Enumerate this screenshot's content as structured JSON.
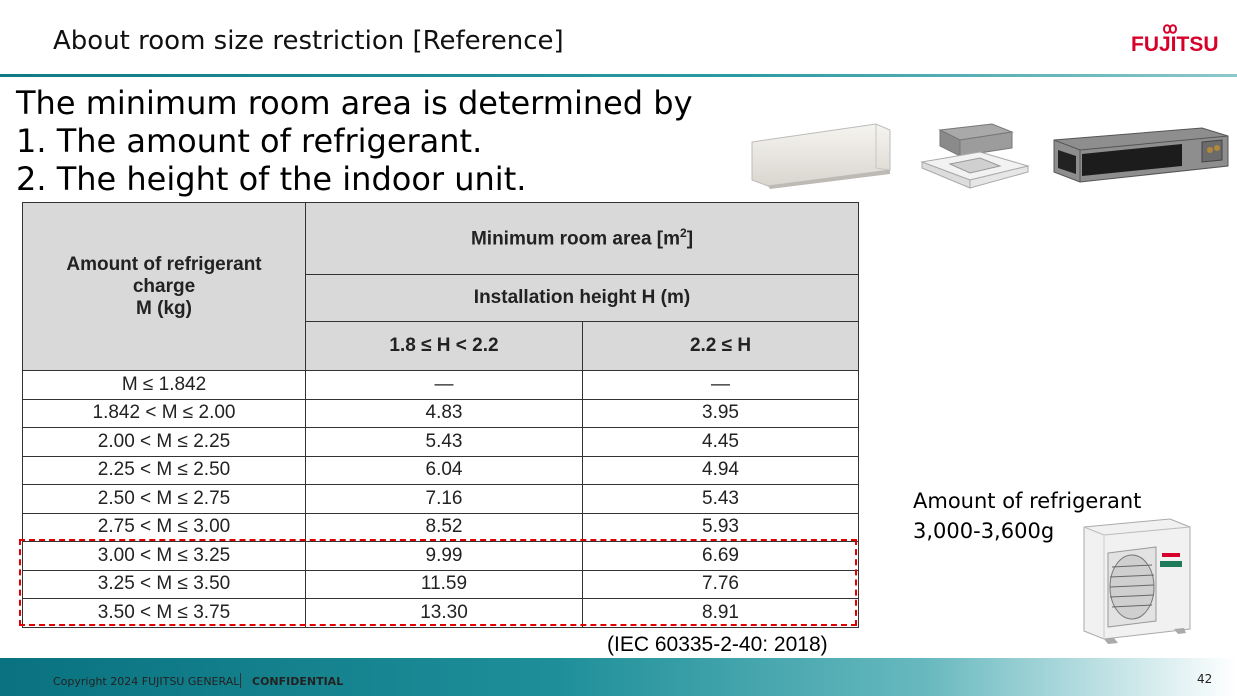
{
  "slide": {
    "title": "About room size restriction [Reference]",
    "logo_text": "FUJITSU",
    "intro_lines": [
      "The minimum room area is determined by",
      "1. The amount of refrigerant.",
      "2. The height of the indoor unit."
    ]
  },
  "table": {
    "col1_header_lines": [
      "Amount of refrigerant",
      "charge",
      "M (kg)"
    ],
    "group_header": "Minimum room area [m",
    "group_header_sup": "2",
    "group_header_end": "]",
    "sub_header": "Installation height H (m)",
    "height_cols": [
      "1.8 ≤ H < 2.2",
      "2.2 ≤ H"
    ],
    "rows": [
      {
        "charge": "M ≤ 1.842",
        "low": "—",
        "high": "—"
      },
      {
        "charge": "1.842 < M ≤ 2.00",
        "low": "4.83",
        "high": "3.95"
      },
      {
        "charge": "2.00 < M ≤ 2.25",
        "low": "5.43",
        "high": "4.45"
      },
      {
        "charge": "2.25 < M ≤ 2.50",
        "low": "6.04",
        "high": "4.94"
      },
      {
        "charge": "2.50 < M ≤ 2.75",
        "low": "7.16",
        "high": "5.43"
      },
      {
        "charge": "2.75 < M ≤ 3.00",
        "low": "8.52",
        "high": "5.93"
      },
      {
        "charge": "3.00 < M ≤ 3.25",
        "low": "9.99",
        "high": "6.69"
      },
      {
        "charge": "3.25 < M ≤ 3.50",
        "low": "11.59",
        "high": "7.76"
      },
      {
        "charge": "3.50 < M ≤ 3.75",
        "low": "13.30",
        "high": "8.91"
      }
    ],
    "citation": "(IEC 60335-2-40: 2018)"
  },
  "note": {
    "line1": "Amount of refrigerant",
    "line2": "3,000-3,600g"
  },
  "footer": {
    "copyright": "Copyright 2024 FUJITSU GENERAL",
    "confidential": "CONFIDENTIAL",
    "page": "42"
  },
  "colors": {
    "brand_red": "#d7002a",
    "teal": "#0f7a83",
    "highlight": "#e00000",
    "header_gray": "#d9d9d9"
  }
}
